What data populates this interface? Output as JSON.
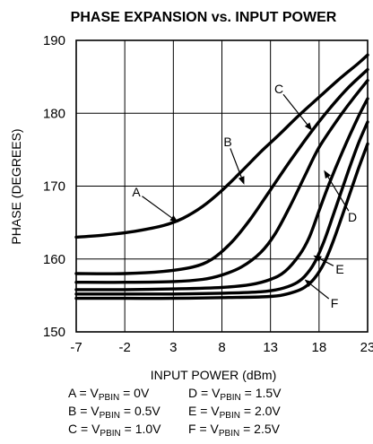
{
  "chart_data": {
    "type": "line",
    "title": "PHASE EXPANSION vs. INPUT POWER",
    "xlabel": "INPUT POWER (dBm)",
    "ylabel": "PHASE (DEGREES)",
    "xlim": [
      -7,
      23
    ],
    "ylim": [
      150,
      190
    ],
    "xticks": [
      -7,
      -2,
      3,
      8,
      13,
      18,
      23
    ],
    "yticks": [
      150,
      160,
      170,
      180,
      190
    ],
    "grid": true,
    "series": [
      {
        "name": "A",
        "x": [
          -7,
          -4,
          -1,
          2,
          4,
          6,
          8,
          10,
          12,
          14,
          16,
          18,
          20,
          22,
          23
        ],
        "y": [
          163,
          163.3,
          163.8,
          164.6,
          165.6,
          167.2,
          169.4,
          172,
          174.7,
          177.2,
          179.8,
          182.2,
          184.6,
          186.8,
          188
        ]
      },
      {
        "name": "B",
        "x": [
          -7,
          -2,
          2,
          5,
          7,
          9,
          11,
          13,
          15,
          17,
          19,
          21,
          23
        ],
        "y": [
          158,
          158,
          158.3,
          158.9,
          160,
          162.3,
          165.6,
          169.5,
          173.4,
          177.1,
          180.5,
          183.5,
          186
        ]
      },
      {
        "name": "C",
        "x": [
          -7,
          -2,
          3,
          6,
          8,
          10,
          12,
          13.5,
          15,
          16.5,
          18,
          20,
          21.5,
          23
        ],
        "y": [
          156.8,
          156.8,
          156.9,
          157.2,
          157.8,
          158.9,
          160.9,
          163.5,
          167.2,
          171.3,
          175.3,
          179.3,
          182,
          184.5
        ]
      },
      {
        "name": "D",
        "x": [
          -7,
          -2,
          3,
          8,
          11,
          13,
          14.5,
          16,
          17,
          18,
          19,
          20.5,
          22,
          23
        ],
        "y": [
          155.8,
          155.8,
          155.9,
          156.1,
          156.5,
          157.2,
          158.3,
          160.6,
          163,
          166.6,
          170.2,
          175,
          179.4,
          182
        ]
      },
      {
        "name": "E",
        "x": [
          -7,
          -2,
          3,
          8,
          12,
          14,
          15.5,
          16.5,
          17.5,
          18.5,
          19.5,
          21,
          22,
          23
        ],
        "y": [
          155.2,
          155.2,
          155.2,
          155.3,
          155.5,
          155.9,
          156.6,
          157.6,
          159.4,
          162.4,
          166.2,
          172,
          175.7,
          178.8
        ]
      },
      {
        "name": "F",
        "x": [
          -7,
          -2,
          3,
          8,
          12,
          14,
          15.5,
          16.5,
          17.5,
          18.5,
          19.5,
          21,
          22,
          23
        ],
        "y": [
          154.6,
          154.6,
          154.6,
          154.7,
          154.8,
          155,
          155.5,
          156.1,
          157.3,
          159.4,
          162.6,
          168.3,
          172.2,
          175.8
        ]
      }
    ],
    "annotations": [
      {
        "label": "A",
        "at": [
          3.5,
          165
        ]
      },
      {
        "label": "B",
        "at": [
          10.3,
          170.2
        ]
      },
      {
        "label": "C",
        "at": [
          17.3,
          177.6
        ]
      },
      {
        "label": "D",
        "at": [
          18.5,
          172.2
        ]
      },
      {
        "label": "E",
        "at": [
          17.4,
          160.5
        ]
      },
      {
        "label": "F",
        "at": [
          16.5,
          157.2
        ]
      }
    ],
    "legend": [
      {
        "id": "A",
        "text": "A = V",
        "sub": "PBIN",
        "value": " = 0V"
      },
      {
        "id": "B",
        "text": "B = V",
        "sub": "PBIN",
        "value": " = 0.5V"
      },
      {
        "id": "C",
        "text": "C = V",
        "sub": "PBIN",
        "value": " = 1.0V"
      },
      {
        "id": "D",
        "text": "D = V",
        "sub": "PBIN",
        "value": " = 1.5V"
      },
      {
        "id": "E",
        "text": "E = V",
        "sub": "PBIN",
        "value": " = 2.0V"
      },
      {
        "id": "F",
        "text": "F = V",
        "sub": "PBIN",
        "value": " = 2.5V"
      }
    ]
  }
}
